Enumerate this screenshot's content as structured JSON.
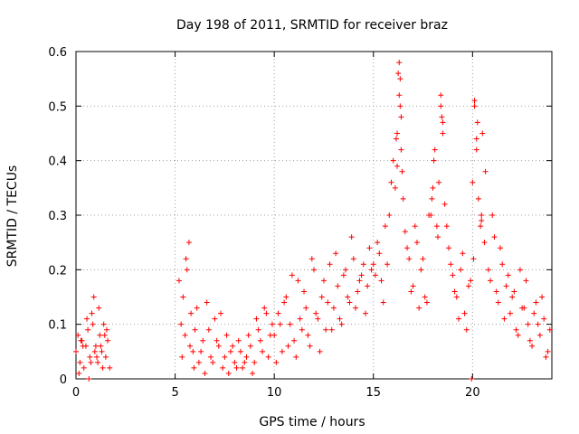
{
  "chart_data": {
    "type": "scatter",
    "title": "Day 198 of 2011, SRMTID for receiver braz",
    "xlabel": "GPS time / hours",
    "ylabel": "SRMTID / TECUs",
    "xlim": [
      0,
      24
    ],
    "ylim": [
      0,
      0.6
    ],
    "xticks": [
      0,
      5,
      10,
      15,
      20
    ],
    "xtick_labels": [
      "0",
      "5",
      "10",
      "15",
      "20"
    ],
    "yticks": [
      0,
      0.1,
      0.2,
      0.3,
      0.4,
      0.5,
      0.6
    ],
    "ytick_labels": [
      "0",
      "0.1",
      "0.2",
      "0.3",
      "0.4",
      "0.5",
      "0.6"
    ],
    "grid": true,
    "marker": "+",
    "color": "#ff0000",
    "series": [
      {
        "name": "SRMTID",
        "x": [
          0.0,
          0.1,
          0.2,
          0.3,
          0.4,
          0.5,
          0.6,
          0.7,
          0.8,
          0.9,
          1.0,
          1.1,
          1.2,
          1.3,
          1.4,
          1.5,
          1.6,
          1.7,
          0.15,
          0.35,
          0.55,
          0.75,
          0.95,
          1.15,
          1.35,
          1.55,
          0.25,
          0.65,
          0.85,
          1.05,
          1.25,
          1.45,
          5.2,
          5.3,
          5.4,
          5.5,
          5.6,
          5.7,
          5.8,
          5.9,
          6.0,
          6.2,
          6.4,
          6.6,
          6.8,
          7.0,
          7.2,
          7.4,
          7.6,
          7.8,
          8.0,
          8.2,
          8.4,
          8.6,
          8.8,
          9.0,
          9.2,
          9.4,
          9.6,
          9.8,
          5.35,
          5.55,
          5.75,
          5.95,
          6.1,
          6.3,
          6.5,
          6.7,
          6.9,
          7.1,
          7.3,
          7.5,
          7.7,
          7.9,
          8.1,
          8.3,
          8.5,
          8.7,
          8.9,
          9.1,
          9.3,
          9.5,
          9.7,
          9.9,
          10.0,
          10.2,
          10.4,
          10.6,
          10.8,
          11.0,
          11.2,
          11.4,
          11.6,
          11.8,
          12.0,
          12.2,
          12.4,
          12.6,
          12.8,
          13.0,
          13.2,
          13.4,
          13.6,
          13.8,
          14.0,
          14.2,
          14.4,
          14.6,
          14.8,
          10.1,
          10.3,
          10.5,
          10.7,
          10.9,
          11.1,
          11.3,
          11.5,
          11.7,
          11.9,
          12.1,
          12.3,
          12.5,
          12.7,
          12.9,
          13.1,
          13.3,
          13.5,
          13.7,
          13.9,
          14.1,
          14.3,
          14.5,
          14.7,
          14.9,
          15.0,
          15.2,
          15.4,
          15.6,
          15.8,
          16.0,
          16.1,
          16.2,
          16.3,
          16.4,
          16.5,
          16.6,
          16.8,
          17.0,
          17.2,
          17.4,
          17.6,
          17.8,
          18.0,
          18.1,
          18.2,
          18.3,
          18.4,
          18.5,
          18.6,
          18.8,
          19.0,
          19.2,
          19.4,
          19.6,
          19.8,
          15.1,
          15.3,
          15.5,
          15.7,
          15.9,
          16.15,
          16.25,
          16.35,
          16.45,
          16.7,
          16.9,
          17.1,
          17.3,
          17.5,
          17.7,
          17.9,
          18.05,
          18.25,
          18.45,
          18.7,
          18.9,
          19.1,
          19.3,
          19.5,
          19.7,
          19.9,
          20.0,
          20.1,
          20.2,
          20.3,
          20.4,
          20.5,
          20.6,
          20.8,
          21.0,
          21.2,
          21.4,
          21.6,
          21.8,
          22.0,
          22.2,
          22.4,
          22.6,
          22.8,
          23.0,
          23.2,
          23.4,
          23.6,
          23.8,
          20.05,
          20.25,
          20.45,
          20.65,
          20.9,
          21.1,
          21.3,
          21.5,
          21.7,
          21.9,
          22.1,
          22.3,
          22.5,
          22.7,
          22.9,
          23.1,
          23.3,
          23.5,
          23.7,
          23.9,
          16.3,
          16.35,
          16.4,
          18.4,
          18.5,
          20.1,
          20.2,
          20.45,
          17.95,
          16.2,
          19.95
        ],
        "y": [
          0.05,
          0.08,
          0.03,
          0.07,
          0.02,
          0.06,
          0.09,
          0.04,
          0.12,
          0.15,
          0.06,
          0.03,
          0.08,
          0.05,
          0.1,
          0.04,
          0.07,
          0.02,
          0.01,
          0.06,
          0.11,
          0.03,
          0.05,
          0.13,
          0.02,
          0.09,
          0.07,
          0.0,
          0.1,
          0.04,
          0.06,
          0.08,
          0.18,
          0.1,
          0.15,
          0.08,
          0.2,
          0.25,
          0.12,
          0.05,
          0.09,
          0.03,
          0.07,
          0.14,
          0.04,
          0.11,
          0.06,
          0.02,
          0.08,
          0.05,
          0.03,
          0.07,
          0.02,
          0.04,
          0.06,
          0.03,
          0.09,
          0.05,
          0.12,
          0.08,
          0.04,
          0.22,
          0.06,
          0.02,
          0.13,
          0.05,
          0.01,
          0.09,
          0.03,
          0.07,
          0.12,
          0.04,
          0.01,
          0.06,
          0.02,
          0.05,
          0.03,
          0.08,
          0.01,
          0.11,
          0.07,
          0.13,
          0.04,
          0.1,
          0.08,
          0.12,
          0.05,
          0.15,
          0.1,
          0.07,
          0.18,
          0.09,
          0.13,
          0.06,
          0.2,
          0.11,
          0.15,
          0.09,
          0.21,
          0.13,
          0.17,
          0.1,
          0.2,
          0.14,
          0.22,
          0.16,
          0.19,
          0.12,
          0.24,
          0.03,
          0.1,
          0.14,
          0.06,
          0.19,
          0.04,
          0.11,
          0.16,
          0.08,
          0.22,
          0.12,
          0.05,
          0.18,
          0.14,
          0.09,
          0.23,
          0.11,
          0.19,
          0.15,
          0.26,
          0.13,
          0.18,
          0.21,
          0.17,
          0.2,
          0.21,
          0.25,
          0.18,
          0.28,
          0.3,
          0.4,
          0.35,
          0.45,
          0.52,
          0.48,
          0.33,
          0.27,
          0.22,
          0.17,
          0.25,
          0.2,
          0.15,
          0.3,
          0.35,
          0.42,
          0.28,
          0.36,
          0.5,
          0.45,
          0.32,
          0.24,
          0.19,
          0.15,
          0.2,
          0.12,
          0.17,
          0.19,
          0.23,
          0.14,
          0.21,
          0.36,
          0.44,
          0.56,
          0.5,
          0.38,
          0.24,
          0.16,
          0.28,
          0.13,
          0.22,
          0.14,
          0.3,
          0.4,
          0.26,
          0.48,
          0.28,
          0.21,
          0.16,
          0.11,
          0.23,
          0.09,
          0.18,
          0.36,
          0.5,
          0.42,
          0.33,
          0.28,
          0.45,
          0.25,
          0.2,
          0.3,
          0.16,
          0.24,
          0.11,
          0.19,
          0.15,
          0.09,
          0.2,
          0.13,
          0.1,
          0.06,
          0.14,
          0.08,
          0.11,
          0.05,
          0.22,
          0.47,
          0.3,
          0.38,
          0.18,
          0.26,
          0.14,
          0.21,
          0.17,
          0.12,
          0.16,
          0.08,
          0.13,
          0.18,
          0.07,
          0.12,
          0.1,
          0.15,
          0.04,
          0.09,
          0.58,
          0.55,
          0.42,
          0.52,
          0.47,
          0.51,
          0.44,
          0.29,
          0.33,
          0.39,
          0.0
        ]
      }
    ]
  }
}
